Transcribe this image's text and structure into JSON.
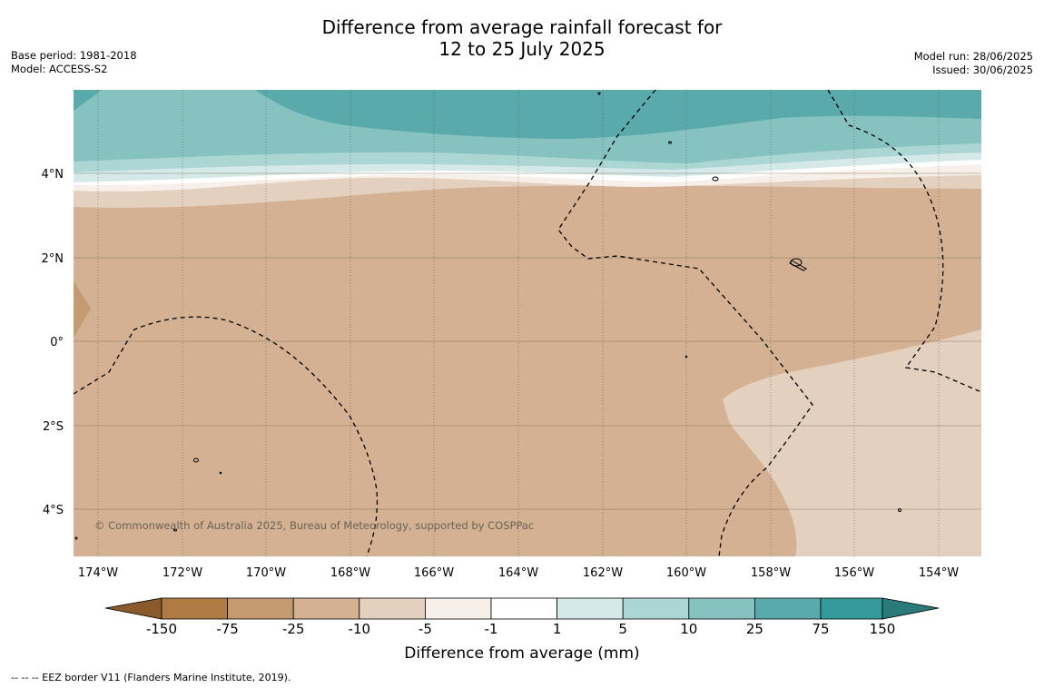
{
  "title": {
    "line1": "Difference from average rainfall forecast for",
    "line2": "12 to 25 July 2025"
  },
  "meta_left": {
    "base_period": "Base period: 1981-2018",
    "model": "Model: ACCESS-S2"
  },
  "meta_right": {
    "model_run": "Model run: 28/06/2025",
    "issued": "Issued: 30/06/2025"
  },
  "map": {
    "lon_range": [
      -174.6,
      -153.0
    ],
    "lat_range": [
      -5.2,
      5.8
    ],
    "lon_ticks": [
      "174°W",
      "172°W",
      "170°W",
      "168°W",
      "166°W",
      "164°W",
      "162°W",
      "160°W",
      "158°W",
      "156°W",
      "154°W"
    ],
    "lat_ticks": [
      "4°N",
      "2°N",
      "0°",
      "2°S",
      "4°S"
    ],
    "credit": "© Commonwealth of Australia 2025, Bureau of Meteorology, supported by COSPPac"
  },
  "colorbar": {
    "title": "Difference from average (mm)",
    "labels": [
      "-150",
      "-75",
      "-25",
      "-10",
      "-5",
      "-1",
      "1",
      "5",
      "10",
      "25",
      "75",
      "150"
    ],
    "colors": [
      "#b07a45",
      "#c49a70",
      "#d3b192",
      "#e3d0be",
      "#f7f0ea",
      "#ffffff",
      "#d4e9e8",
      "#acd6d4",
      "#86c2bf",
      "#5aa9ab",
      "#34999a"
    ],
    "extend_low": "#8b5a2b",
    "extend_high": "#2a7a7a"
  },
  "footer": "--  --  -- EEZ border V11 (Flanders Marine Institute, 2019)."
}
